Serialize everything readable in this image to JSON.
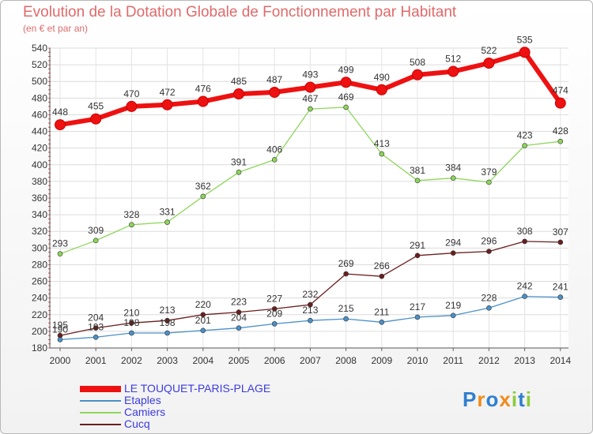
{
  "chart_data": {
    "type": "line",
    "title": "Evolution de la Dotation Globale de Fonctionnement par Habitant",
    "subtitle": "(en € et par an)",
    "xlabel": "",
    "ylabel": "",
    "ylim": [
      180,
      540
    ],
    "y_ticks": [
      180,
      200,
      220,
      240,
      260,
      280,
      300,
      320,
      340,
      360,
      380,
      400,
      420,
      440,
      460,
      480,
      500,
      520,
      540
    ],
    "categories": [
      "2000",
      "2001",
      "2002",
      "2003",
      "2004",
      "2005",
      "2006",
      "2007",
      "2008",
      "2009",
      "2010",
      "2011",
      "2012",
      "2013",
      "2014"
    ],
    "series": [
      {
        "name": "LE TOUQUET-PARIS-PLAGE",
        "color": "#ee1111",
        "values": [
          448,
          455,
          470,
          472,
          476,
          485,
          487,
          493,
          499,
          490,
          508,
          512,
          522,
          535,
          474
        ]
      },
      {
        "name": "Etaples",
        "color": "#4a90c8",
        "values": [
          190,
          193,
          198,
          198,
          201,
          204,
          209,
          213,
          215,
          211,
          217,
          219,
          228,
          242,
          241
        ]
      },
      {
        "name": "Camiers",
        "color": "#8ed65a",
        "values": [
          293,
          309,
          328,
          331,
          362,
          391,
          406,
          467,
          469,
          413,
          381,
          384,
          379,
          423,
          428
        ]
      },
      {
        "name": "Cucq",
        "color": "#6b1e1e",
        "values": [
          195,
          204,
          210,
          213,
          220,
          223,
          227,
          232,
          269,
          266,
          291,
          294,
          296,
          308,
          307
        ]
      }
    ],
    "legend_position": "bottom-left"
  },
  "branding": {
    "logo_letters": [
      "P",
      "r",
      "o",
      "x",
      "i",
      "t",
      "i"
    ],
    "logo_colors": [
      "#2f7fd0",
      "#f08c1c",
      "#2f7fd0",
      "#f08c1c",
      "#8ccc3a",
      "#2f7fd0",
      "#8ccc3a"
    ]
  }
}
